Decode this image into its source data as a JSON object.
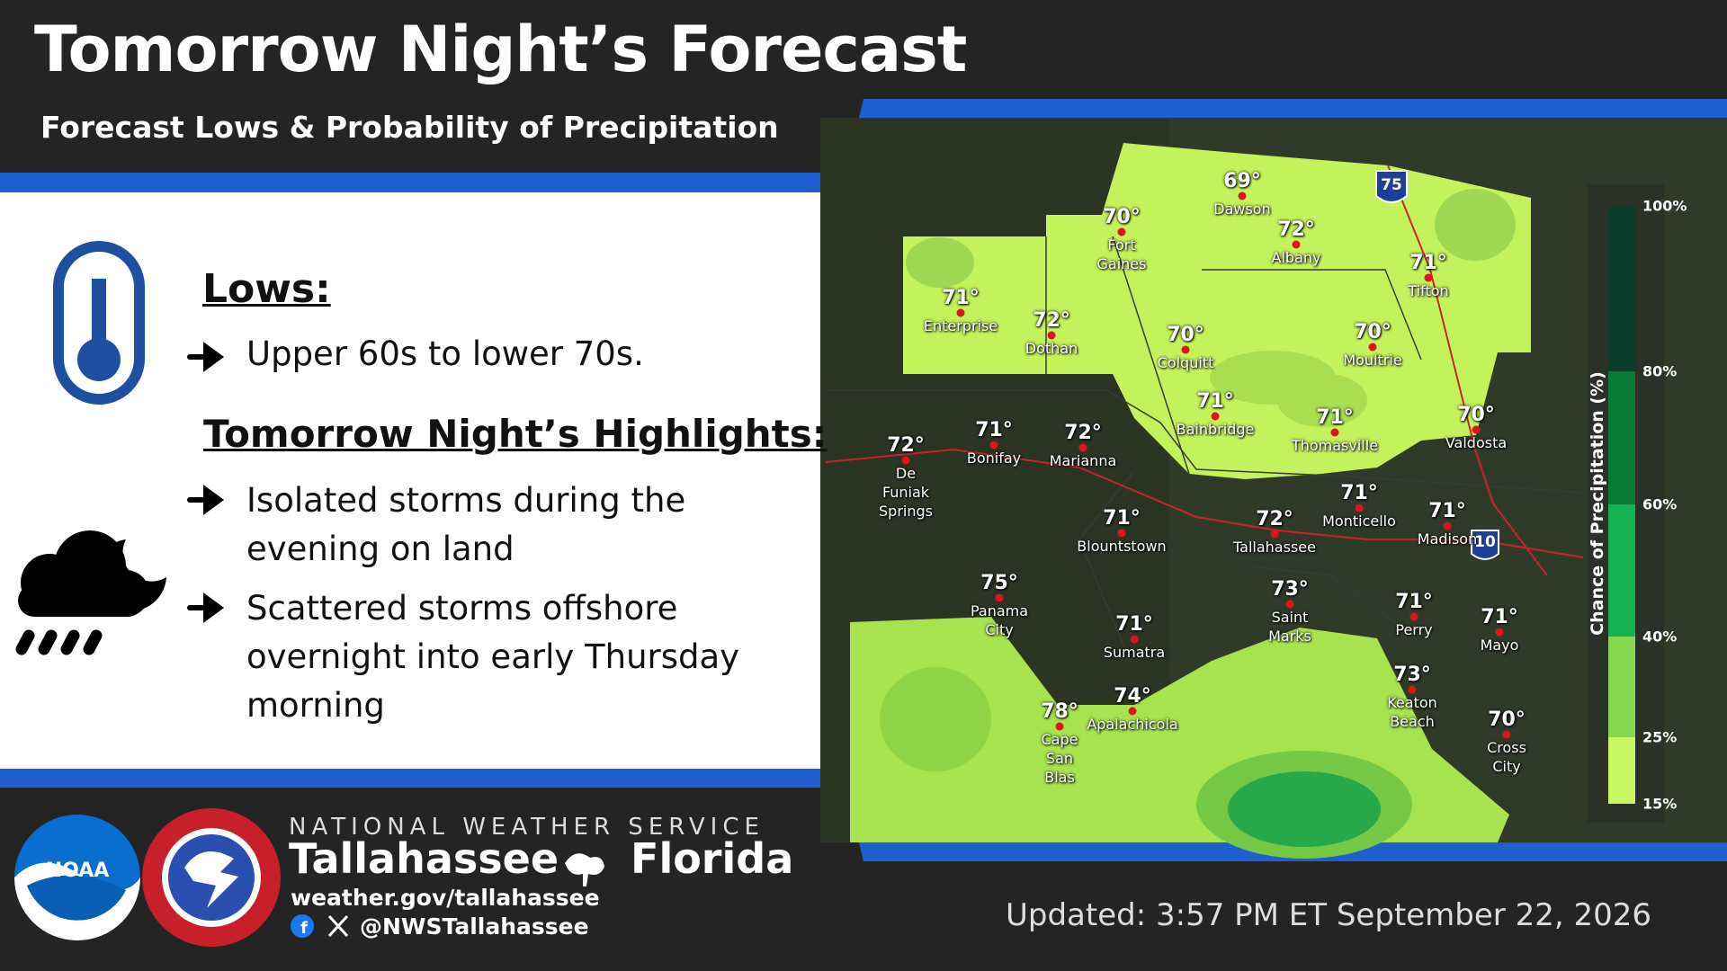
{
  "header": {
    "title": "Tomorrow Night’s Forecast",
    "subtitle": "Forecast Lows & Probability of Precipitation"
  },
  "lows": {
    "heading": "Lows:",
    "text": "Upper 60s to lower 70s."
  },
  "highlights": {
    "heading": "Tomorrow Night’s Highlights:",
    "items": [
      "Isolated storms during the evening on land",
      "Scattered storms offshore overnight into early Thursday morning"
    ]
  },
  "map": {
    "cities": [
      {
        "name": "Dawson",
        "low": "69°"
      },
      {
        "name": "Fort Gaines",
        "low": "70°"
      },
      {
        "name": "Albany",
        "low": "72°"
      },
      {
        "name": "Tifton",
        "low": "71°"
      },
      {
        "name": "Enterprise",
        "low": "71°"
      },
      {
        "name": "Dothan",
        "low": "72°"
      },
      {
        "name": "Colquitt",
        "low": "70°"
      },
      {
        "name": "Moultrie",
        "low": "70°"
      },
      {
        "name": "Bainbridge",
        "low": "71°"
      },
      {
        "name": "Thomasville",
        "low": "71°"
      },
      {
        "name": "Valdosta",
        "low": "70°"
      },
      {
        "name": "De Funiak Springs",
        "low": "72°"
      },
      {
        "name": "Bonifay",
        "low": "71°"
      },
      {
        "name": "Marianna",
        "low": "72°"
      },
      {
        "name": "Blountstown",
        "low": "71°"
      },
      {
        "name": "Tallahassee",
        "low": "72°"
      },
      {
        "name": "Monticello",
        "low": "71°"
      },
      {
        "name": "Madison",
        "low": "71°"
      },
      {
        "name": "Panama City",
        "low": "75°"
      },
      {
        "name": "Saint Marks",
        "low": "73°"
      },
      {
        "name": "Perry",
        "low": "71°"
      },
      {
        "name": "Mayo",
        "low": "71°"
      },
      {
        "name": "Sumatra",
        "low": "71°"
      },
      {
        "name": "Keaton Beach",
        "low": "73°"
      },
      {
        "name": "Cape San Blas",
        "low": "78°"
      },
      {
        "name": "Apalachicola",
        "low": "74°"
      },
      {
        "name": "Cross City",
        "low": "70°"
      }
    ],
    "interstates": [
      "75",
      "10"
    ],
    "legend": {
      "title": "Chance of Precipitation (%)",
      "ticks": [
        "100%",
        "80%",
        "60%",
        "40%",
        "25%",
        "15%"
      ]
    }
  },
  "footer": {
    "logo": "NOAA",
    "agency": "NATIONAL WEATHER SERVICE",
    "office_city": "Tallahassee",
    "office_state": "Florida",
    "website": "weather.gov/tallahassee",
    "social": "@NWSTallahassee",
    "updated": "Updated:  3:57 PM ET September 22, 2026"
  }
}
